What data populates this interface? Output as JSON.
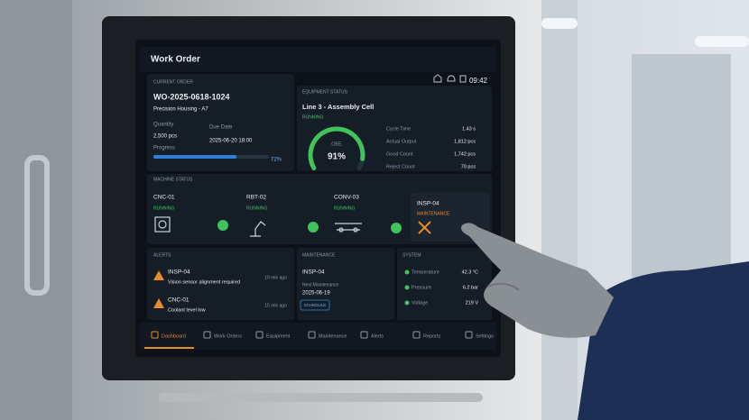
{
  "header": {
    "title": "Work Order",
    "time": "09:42"
  },
  "current_order": {
    "label": "CURRENT ORDER",
    "order_id": "WO-2025-0618-1024",
    "product": "Precision Housing - A7",
    "quantity_label": "Quantity",
    "quantity": "2,500 pcs",
    "due_date_label": "Due Date",
    "due_date": "2025-06-20 18:00",
    "progress_label": "Progress",
    "progress": {
      "value": 72,
      "label": "72%"
    }
  },
  "equipment_status": {
    "label": "EQUIPMENT STATUS",
    "line": "Line 3 - Assembly Cell",
    "state": "RUNNING",
    "oee_label": "OEE",
    "oee": {
      "value": 91,
      "label": "91%"
    },
    "metrics": [
      {
        "label": "Cycle Time",
        "value": "1.43 s"
      },
      {
        "label": "Actual Output",
        "value": "1,812 pcs"
      },
      {
        "label": "Good Count",
        "value": "1,742 pcs"
      },
      {
        "label": "Reject Count",
        "value": "70 pcs"
      }
    ]
  },
  "machine_status": {
    "label": "MACHINE STATUS",
    "machines": [
      {
        "id": "CNC-01",
        "state": "RUNNING"
      },
      {
        "id": "RBT-02",
        "state": "RUNNING"
      },
      {
        "id": "CONV-03",
        "state": "RUNNING"
      },
      {
        "id": "INSP-04",
        "state": "MAINTENANCE"
      }
    ]
  },
  "alerts": {
    "label": "ALERTS",
    "items": [
      {
        "id": "INSP-04",
        "message": "Vision sensor alignment required",
        "time": "10 min ago"
      },
      {
        "id": "CNC-01",
        "message": "Coolant level low",
        "time": "15 min ago"
      }
    ]
  },
  "maintenance": {
    "label": "MAINTENANCE",
    "id": "INSP-04",
    "next_label": "Next Maintenance",
    "date": "2025-06-19",
    "button": "SCHEDULE"
  },
  "system": {
    "label": "SYSTEM",
    "metrics": [
      {
        "label": "Temperature",
        "value": "42.3 °C"
      },
      {
        "label": "Pressure",
        "value": "6.2 bar"
      },
      {
        "label": "Voltage",
        "value": "219 V"
      }
    ]
  },
  "nav": [
    "Dashboard",
    "Work Orders",
    "Equipment",
    "Maintenance",
    "Alerts",
    "Reports",
    "Settings"
  ]
}
